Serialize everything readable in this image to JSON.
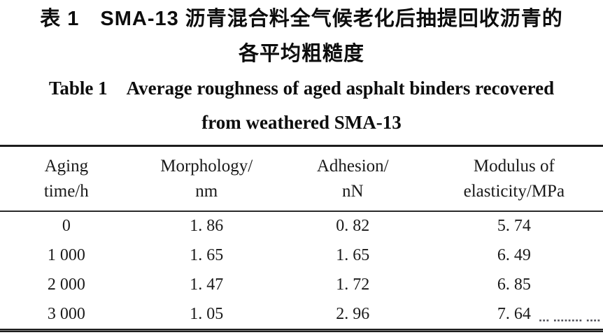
{
  "caption": {
    "zh_line1": "表 1　SMA-13 沥青混合料全气候老化后抽提回收沥青的",
    "zh_line2": "各平均粗糙度",
    "en_line1": "Table 1　Average roughness of aged asphalt binders recovered",
    "en_line2": "from weathered SMA-13"
  },
  "table": {
    "columns": [
      {
        "line1": "Aging",
        "line2": "time/h"
      },
      {
        "line1": "Morphology/",
        "line2": "nm"
      },
      {
        "line1": "Adhesion/",
        "line2": "nN"
      },
      {
        "line1": "Modulus of",
        "line2": "elasticity/MPa"
      }
    ],
    "rows": [
      [
        "0",
        "1. 86",
        "0. 82",
        "5. 74"
      ],
      [
        "1 000",
        "1. 65",
        "1. 65",
        "6. 49"
      ],
      [
        "2 000",
        "1. 47",
        "1. 72",
        "6. 85"
      ],
      [
        "3 000",
        "1. 05",
        "2. 96",
        "7. 64"
      ]
    ]
  },
  "chart_data": {
    "type": "table",
    "title": "Table 1 Average roughness of aged asphalt binders recovered from weathered SMA-13",
    "title_zh": "表1 SMA-13沥青混合料全气候老化后抽提回收沥青的各平均粗糙度",
    "columns": [
      "Aging time/h",
      "Morphology/nm",
      "Adhesion/nN",
      "Modulus of elasticity/MPa"
    ],
    "rows": [
      [
        0,
        1.86,
        0.82,
        5.74
      ],
      [
        1000,
        1.65,
        1.65,
        6.49
      ],
      [
        2000,
        1.47,
        1.72,
        6.85
      ],
      [
        3000,
        1.05,
        2.96,
        7.64
      ]
    ]
  },
  "watermark": {
    "marks": "▪▪▪ ▪▪▪▪▪▪▪▪ ▪▪▪▪"
  },
  "colors": {
    "background": "#ffffff",
    "text": "#111111",
    "rule": "#1c1c1c",
    "watermark": "#33333d"
  }
}
